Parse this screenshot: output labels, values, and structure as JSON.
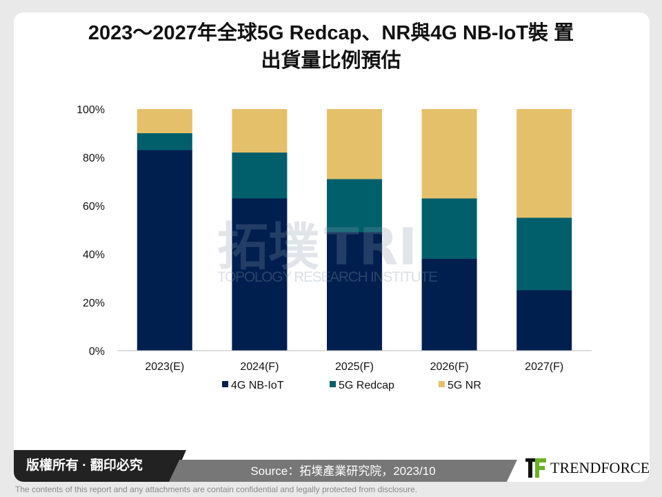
{
  "title_line1": "2023～2027年全球5G Redcap、NR與4G NB-IoT裝 置",
  "title_line2": "出貨量比例預估",
  "chart_data": {
    "type": "bar",
    "stacked": true,
    "categories": [
      "2023(E)",
      "2024(F)",
      "2025(F)",
      "2026(F)",
      "2027(F)"
    ],
    "series": [
      {
        "name": "4G NB-IoT",
        "color": "#001f4e",
        "values": [
          83,
          63,
          49,
          38,
          25
        ]
      },
      {
        "name": "5G Redcap",
        "color": "#005f6b",
        "values": [
          7,
          19,
          22,
          25,
          30
        ]
      },
      {
        "name": "5G NR",
        "color": "#e5c06a",
        "values": [
          10,
          18,
          29,
          37,
          45
        ]
      }
    ],
    "yticks": [
      "0%",
      "20%",
      "40%",
      "60%",
      "80%",
      "100%"
    ],
    "ylim": [
      0,
      100
    ],
    "legend": "bottom",
    "grid": false
  },
  "watermark": {
    "cn": "拓墣",
    "en": "TOPOLOGY RESEARCH INSTITUTE",
    "mark": "TRI"
  },
  "footer": {
    "copyright": "版權所有 · 翻印必究",
    "source": "Source：拓墣產業研究院，2023/10",
    "brand": "TRENDFORCE",
    "disclaimer": "The contents of this report and any attachments are contain confidential and legally protected from disclosure."
  }
}
